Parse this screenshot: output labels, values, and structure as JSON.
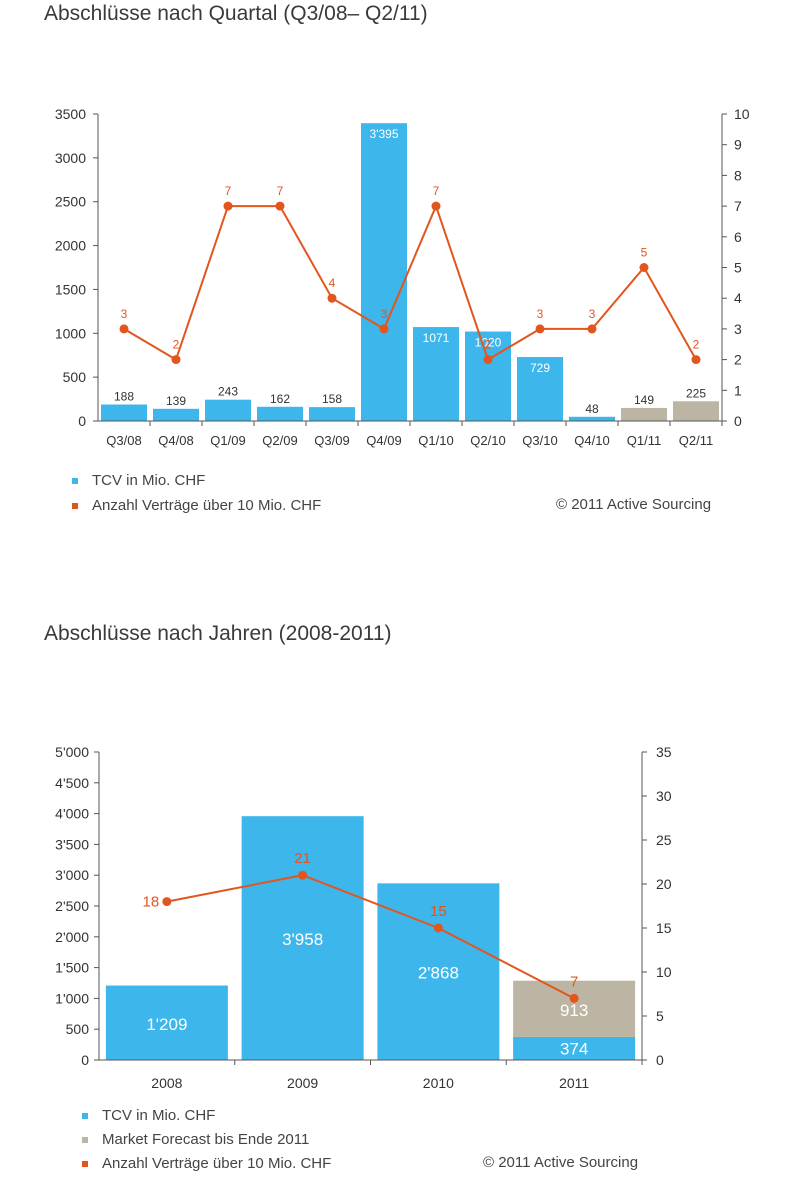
{
  "colors": {
    "tcv": "#3db6ec",
    "forecast": "#bdb5a3",
    "line": "#e2561e"
  },
  "chart1": {
    "title": "Abschlüsse nach Quartal (Q3/08– Q2/11)",
    "copyright": "© 2011 Active Sourcing",
    "legend": [
      {
        "label": "TCV in Mio. CHF",
        "color": "#3db6ec"
      },
      {
        "label": "Anzahl Verträge über 10 Mio. CHF",
        "color": "#e2561e"
      }
    ]
  },
  "chart2": {
    "title": "Abschlüsse nach Jahren (2008-2011)",
    "copyright": "© 2011 Active Sourcing",
    "legend": [
      {
        "label": "TCV in Mio. CHF",
        "color": "#3db6ec"
      },
      {
        "label": "Market Forecast bis Ende 2011",
        "color": "#bdb5a3"
      },
      {
        "label": "Anzahl Verträge über 10 Mio. CHF",
        "color": "#e2561e"
      }
    ]
  },
  "chart_data": [
    {
      "type": "bar",
      "title": "Abschlüsse nach Quartal (Q3/08– Q2/11)",
      "categories": [
        "Q3/08",
        "Q4/08",
        "Q1/09",
        "Q2/09",
        "Q3/09",
        "Q4/09",
        "Q1/10",
        "Q2/10",
        "Q3/10",
        "Q4/10",
        "Q1/11",
        "Q2/11"
      ],
      "series": [
        {
          "name": "TCV in Mio. CHF",
          "kind": "bar",
          "axis": "left",
          "values": [
            188,
            139,
            243,
            162,
            158,
            3395,
            1071,
            1020,
            729,
            48,
            149,
            225
          ],
          "labels": [
            "188",
            "139",
            "243",
            "162",
            "158",
            "3'395",
            "1071",
            "1020",
            "729",
            "48",
            "149",
            "225"
          ],
          "bar_colors": [
            "tcv",
            "tcv",
            "tcv",
            "tcv",
            "tcv",
            "tcv",
            "tcv",
            "tcv",
            "tcv",
            "tcv",
            "forecast",
            "forecast"
          ]
        },
        {
          "name": "Anzahl Verträge über 10 Mio. CHF",
          "kind": "line",
          "axis": "right",
          "values": [
            3,
            2,
            7,
            7,
            4,
            3,
            7,
            2,
            3,
            3,
            5,
            2
          ]
        }
      ],
      "ylim_left": [
        0,
        3500
      ],
      "yticks_left": [
        "0",
        "500",
        "1000",
        "1500",
        "2000",
        "2500",
        "3000",
        "3500"
      ],
      "ylim_right": [
        0,
        10
      ],
      "yticks_right": [
        "0",
        "1",
        "2",
        "3",
        "4",
        "5",
        "6",
        "7",
        "8",
        "9",
        "10"
      ],
      "grid": false,
      "legend_position": "bottom-left"
    },
    {
      "type": "bar",
      "title": "Abschlüsse nach Jahren (2008-2011)",
      "categories": [
        "2008",
        "2009",
        "2010",
        "2011"
      ],
      "series": [
        {
          "name": "TCV in Mio. CHF",
          "kind": "bar",
          "axis": "left",
          "stack": "s",
          "values": [
            1209,
            3958,
            2868,
            374
          ],
          "labels": [
            "1'209",
            "3'958",
            "2'868",
            "374"
          ]
        },
        {
          "name": "Market Forecast bis Ende 2011",
          "kind": "bar",
          "axis": "left",
          "stack": "s",
          "values": [
            0,
            0,
            0,
            913
          ],
          "labels": [
            "",
            "",
            "",
            "913"
          ]
        },
        {
          "name": "Anzahl Verträge über 10 Mio. CHF",
          "kind": "line",
          "axis": "right",
          "values": [
            18,
            21,
            15,
            7
          ]
        }
      ],
      "ylim_left": [
        0,
        5000
      ],
      "yticks_left": [
        "0",
        "500",
        "1'000",
        "1'500",
        "2'000",
        "2'500",
        "3'000",
        "3'500",
        "4'000",
        "4'500",
        "5'000"
      ],
      "ylim_right": [
        0,
        35
      ],
      "yticks_right": [
        "0",
        "5",
        "10",
        "15",
        "20",
        "25",
        "30",
        "35"
      ],
      "grid": false,
      "legend_position": "bottom-left"
    }
  ]
}
